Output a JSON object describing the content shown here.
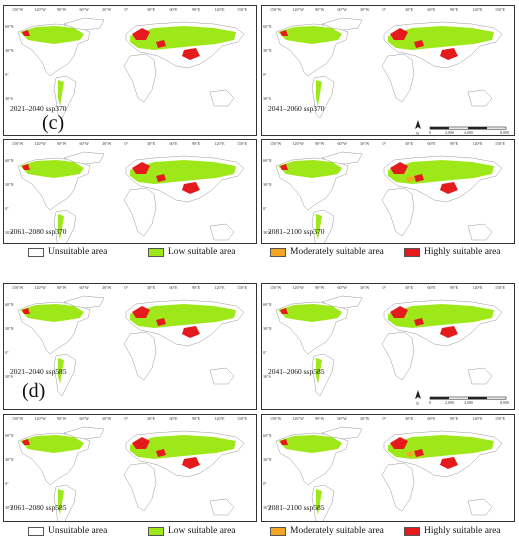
{
  "colors": {
    "unsuitable": "#ffffff",
    "low": "#9ee81a",
    "moderate": "#f5a623",
    "high": "#e41a1c",
    "land_outline": "#9a9a9a"
  },
  "group_c": {
    "letter": "(c)",
    "panels": [
      {
        "label": "2021–2040 ssp370"
      },
      {
        "label": "2041–2060 ssp370"
      },
      {
        "label": "2061–2080 ssp370"
      },
      {
        "label": "2081–2100 ssp370"
      }
    ]
  },
  "group_d": {
    "letter": "(d)",
    "panels": [
      {
        "label": "2021–2040 ssp585"
      },
      {
        "label": "2041–2060 ssp585"
      },
      {
        "label": "2061–2080 ssp585"
      },
      {
        "label": "2081–2100 ssp585"
      }
    ]
  },
  "legend": [
    {
      "label": "Unsuitable area",
      "color": "#ffffff"
    },
    {
      "label": "Low suitable area",
      "color": "#9ee81a"
    },
    {
      "label": "Moderately suitable area",
      "color": "#f5a623"
    },
    {
      "label": "Highly suitable area",
      "color": "#e41a1c"
    }
  ],
  "top_ticks_left": [
    "150°W",
    "120°W",
    "90°W",
    "60°W",
    "30°W",
    "0°",
    "30°E",
    "60°E",
    "90°E",
    "120°E",
    "150°E"
  ],
  "top_ticks_right": [
    "150°W",
    "120°W",
    "90°W",
    "60°W",
    "30°W",
    "0°",
    "30°E",
    "60°E",
    "90°E",
    "120°E",
    "150°E"
  ],
  "lat_ticks": [
    "60°N",
    "30°N",
    "0°",
    "30°S"
  ],
  "north_label": "N",
  "scale_labels": [
    "0",
    "2,000",
    "4,000",
    "8,000"
  ],
  "scale_unit": "km"
}
